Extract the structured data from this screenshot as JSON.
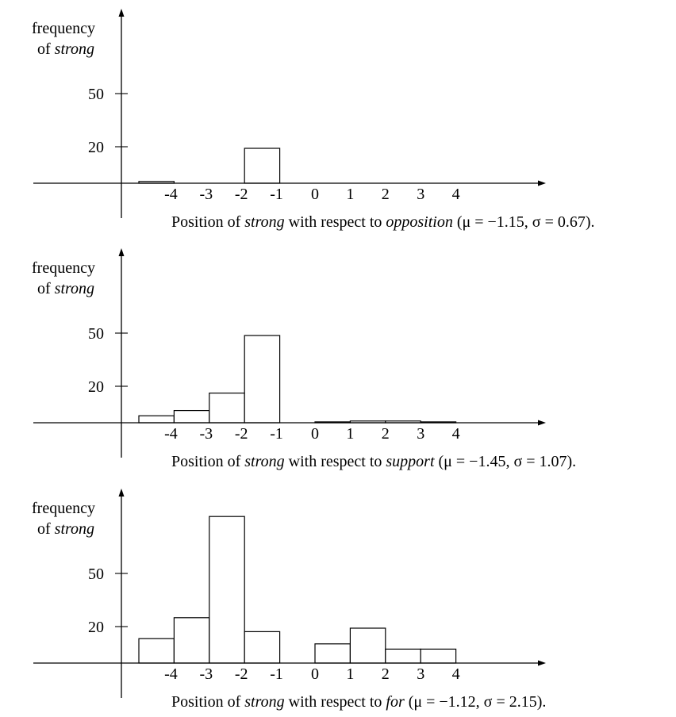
{
  "chart_data": [
    {
      "type": "bar",
      "ylabel": [
        "frequency",
        "of strong"
      ],
      "ylabel_italic_word": "strong",
      "yticks": [
        20,
        50
      ],
      "x": [
        -4,
        -3,
        -2,
        -1,
        0,
        1,
        2,
        3,
        4
      ],
      "values": [
        1,
        0,
        0,
        20,
        0,
        0,
        0,
        0,
        0
      ],
      "caption": {
        "parts": [
          {
            "text": "Position of ",
            "italic": false
          },
          {
            "text": "strong",
            "italic": true
          },
          {
            "text": " with respect to ",
            "italic": false
          },
          {
            "text": "opposition",
            "italic": true
          },
          {
            "text": " (μ = −1.15, σ = 0.67).",
            "italic": false
          }
        ]
      }
    },
    {
      "type": "bar",
      "ylabel": [
        "frequency",
        "of strong"
      ],
      "ylabel_italic_word": "strong",
      "yticks": [
        20,
        50
      ],
      "x": [
        -4,
        -3,
        -2,
        -1,
        0,
        1,
        2,
        3,
        4
      ],
      "values": [
        4,
        7,
        17,
        50,
        0,
        0.5,
        1,
        1,
        0.5
      ],
      "caption": {
        "parts": [
          {
            "text": "Position of ",
            "italic": false
          },
          {
            "text": "strong",
            "italic": true
          },
          {
            "text": " with respect to ",
            "italic": false
          },
          {
            "text": "support",
            "italic": true
          },
          {
            "text": " (μ = −1.45, σ = 1.07).",
            "italic": false
          }
        ]
      }
    },
    {
      "type": "bar",
      "ylabel": [
        "frequency",
        "of strong"
      ],
      "ylabel_italic_word": "strong",
      "yticks": [
        20,
        50
      ],
      "x": [
        -4,
        -3,
        -2,
        -1,
        0,
        1,
        2,
        3,
        4
      ],
      "values": [
        14,
        26,
        84,
        18,
        0,
        11,
        20,
        8,
        8
      ],
      "caption": {
        "parts": [
          {
            "text": "Position of ",
            "italic": false
          },
          {
            "text": "strong",
            "italic": true
          },
          {
            "text": " with respect to ",
            "italic": false
          },
          {
            "text": "for",
            "italic": true
          },
          {
            "text": " (μ = −1.12, σ = 2.15).",
            "italic": false
          }
        ]
      }
    }
  ]
}
